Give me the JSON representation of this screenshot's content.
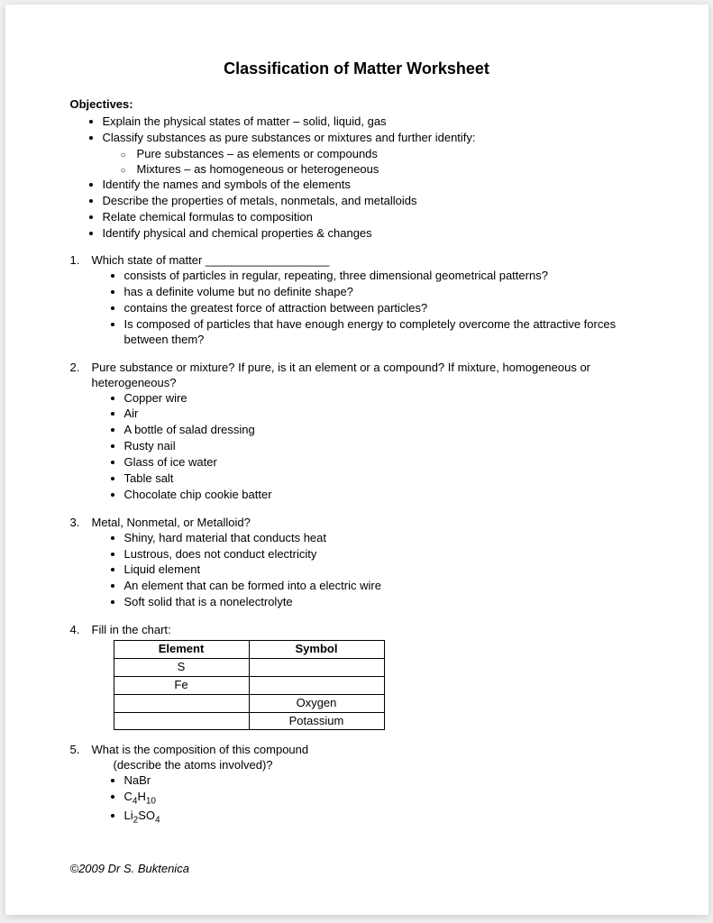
{
  "title": "Classification of Matter Worksheet",
  "objectives_label": "Objectives:",
  "objectives": [
    "Explain the physical states of matter – solid, liquid, gas",
    "Classify substances as pure substances or mixtures and further identify:"
  ],
  "objectives_sub": [
    "Pure substances – as elements or compounds",
    "Mixtures – as homogeneous or heterogeneous"
  ],
  "objectives_cont": [
    "Identify the names and symbols of the elements",
    "Describe the properties of metals, nonmetals, and metalloids",
    "Relate chemical formulas to composition",
    "Identify physical and chemical properties & changes"
  ],
  "q1_num": "1.",
  "q1_text": "Which state of matter ___________________",
  "q1_items": [
    "consists of particles in regular, repeating, three dimensional  geometrical patterns?",
    "has a definite volume but no definite shape?",
    "contains the greatest force of attraction between particles?",
    "Is composed of particles that have enough energy to completely overcome the attractive forces between them?"
  ],
  "q2_num": "2.",
  "q2_text": "Pure substance or mixture?  If pure, is it an element or a compound?  If mixture, homogeneous or heterogeneous?",
  "q2_items": [
    "Copper wire",
    "Air",
    "A bottle of salad dressing",
    "Rusty nail",
    "Glass of ice water",
    "Table salt",
    "Chocolate chip cookie batter"
  ],
  "q3_num": "3.",
  "q3_text": "Metal, Nonmetal, or Metalloid?",
  "q3_items": [
    "Shiny, hard material that conducts heat",
    "Lustrous, does not conduct electricity",
    "Liquid element",
    "An element that can be formed into a electric wire",
    "Soft solid that is a nonelectrolyte"
  ],
  "q4_num": "4.",
  "q4_text": "Fill in the chart:",
  "q4_headers": [
    "Element",
    "Symbol"
  ],
  "q4_rows": [
    [
      "S",
      ""
    ],
    [
      "Fe",
      ""
    ],
    [
      "",
      "Oxygen"
    ],
    [
      "",
      "Potassium"
    ]
  ],
  "q5_num": "5.",
  "q5_text": "What is the composition of this compound",
  "q5_sub": "(describe the atoms involved)?",
  "q5_items": [
    "NaBr",
    "C₄H₁₀",
    "Li₂SO₄"
  ],
  "footer": "©2009 Dr S. Buktenica"
}
